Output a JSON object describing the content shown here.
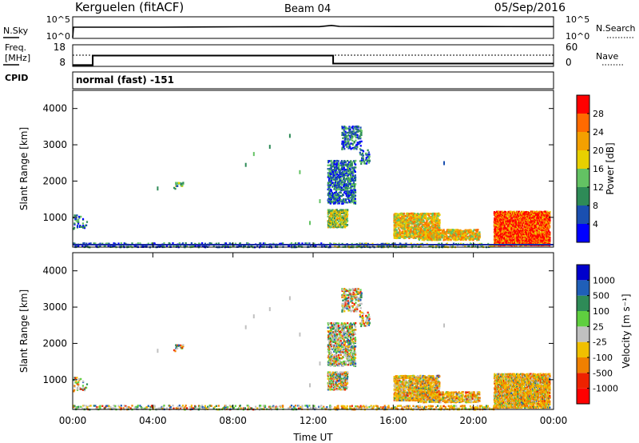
{
  "header": {
    "station": "Kerguelen (fitACF)",
    "beam": "Beam 04",
    "date": "05/Sep/2016"
  },
  "nsky_panel": {
    "left_label": "N.Sky",
    "right_label": "N.Search",
    "left_ticks": [
      "10^5",
      "10^0"
    ],
    "right_ticks": [
      "10^5",
      "10^0"
    ]
  },
  "freq_panel": {
    "left_label_line1": "Freq.",
    "left_label_line2": "[MHz]",
    "right_label": "Nave",
    "left_ticks": [
      "18",
      "8"
    ],
    "right_ticks": [
      "60",
      "0"
    ],
    "cpid_label": "CPID",
    "cpid_text": "normal (fast) -151",
    "freq_steps": [
      {
        "t": 0,
        "freq": 8.6
      },
      {
        "t": 1,
        "freq": 13.0
      },
      {
        "t": 13,
        "freq": 9.3
      },
      {
        "t": 24,
        "freq": 9.3
      }
    ],
    "nave_level": 26
  },
  "chart_data": [
    {
      "type": "heatmap",
      "name": "power",
      "ylabel": "Slant Range [km]",
      "ylim": [
        180,
        4500
      ],
      "yticks": [
        "1000",
        "2000",
        "3000",
        "4000"
      ],
      "xlim": [
        0,
        24
      ],
      "colorbar_label": "Power [dB]",
      "colorbar_ticks": [
        "4",
        "8",
        "12",
        "16",
        "20",
        "24",
        "28"
      ],
      "colors": [
        "#0000ff",
        "#1a4fb0",
        "#2e8b57",
        "#63c263",
        "#e8d000",
        "#f4a000",
        "#ff6a00",
        "#ff0000"
      ]
    },
    {
      "type": "heatmap",
      "name": "velocity",
      "ylabel": "Slant Range [km]",
      "ylim": [
        180,
        4500
      ],
      "yticks": [
        "1000",
        "2000",
        "3000",
        "4000"
      ],
      "xlim": [
        0,
        24
      ],
      "xlabel": "Time UT",
      "xticks": [
        "00:00",
        "04:00",
        "08:00",
        "12:00",
        "16:00",
        "20:00",
        "00:00"
      ],
      "colorbar_label": "Velocity [m s⁻¹]",
      "colorbar_ticks": [
        "1000",
        "500",
        "100",
        "25",
        "-25",
        "-100",
        "-500",
        "-1000"
      ],
      "colors": [
        "#0000cc",
        "#1f5fb8",
        "#2e8b57",
        "#5fcf3f",
        "#c0c0c0",
        "#f0c000",
        "#f08000",
        "#ee2200",
        "#ff0000"
      ]
    }
  ]
}
